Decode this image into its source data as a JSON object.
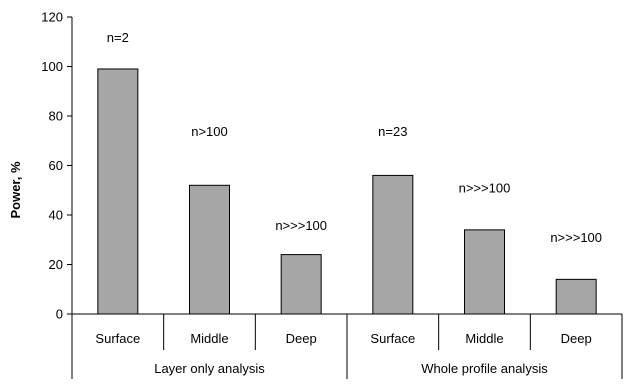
{
  "chart_data": {
    "type": "bar",
    "title": "",
    "xlabel": "",
    "ylabel": "Power, %",
    "ylim": [
      0,
      120
    ],
    "yticks": [
      0,
      20,
      40,
      60,
      80,
      100,
      120
    ],
    "grid": false,
    "legend": "none",
    "bar_color": "#a6a6a6",
    "groups": [
      {
        "label": "Layer only analysis",
        "categories": [
          "Surface",
          "Middle",
          "Deep"
        ]
      },
      {
        "label": "Whole profile analysis",
        "categories": [
          "Surface",
          "Middle",
          "Deep"
        ]
      }
    ],
    "categories": [
      "Surface",
      "Middle",
      "Deep",
      "Surface",
      "Middle",
      "Deep"
    ],
    "values": [
      99,
      52,
      24,
      56,
      34,
      14
    ],
    "annotations": [
      "n=2",
      "n>100",
      "n>>>100",
      "n=23",
      "n>>>100",
      "n>>>100"
    ],
    "annotation_y": [
      110,
      72,
      34,
      72,
      49,
      29
    ]
  }
}
